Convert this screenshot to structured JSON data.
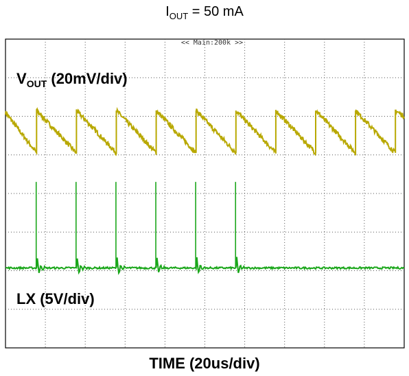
{
  "title": {
    "main": "I",
    "sub": "OUT",
    "rest": " = 50 mA"
  },
  "xlabel": "TIME (20us/div)",
  "banner": "<< Main:200k >>",
  "labels": {
    "vout_main": "V",
    "vout_sub": "OUT",
    "vout_rest": " (20mV/div)",
    "lx": "LX (5V/div)"
  },
  "colors": {
    "vout": "#b8a800",
    "lx": "#1aa61a",
    "grid": "#555555",
    "border": "#000000"
  },
  "chart_data": {
    "type": "line",
    "title": "IOUT = 50 mA",
    "xlabel": "TIME (20us/div)",
    "x_divisions": 10,
    "y_divisions": 8,
    "grid": true,
    "series": [
      {
        "name": "VOUT (20mV/div)",
        "shape": "sawtooth",
        "x": [
          0,
          0.78,
          0.78,
          1.78,
          1.78,
          2.78,
          2.78,
          3.78,
          3.78,
          4.78,
          4.78,
          5.78,
          5.78,
          6.78,
          6.78,
          7.78,
          7.78,
          8.78,
          8.78,
          9.78,
          9.78,
          10
        ],
        "y": [
          6.1,
          5.05,
          6.15,
          5.05,
          6.15,
          5.05,
          6.15,
          5.05,
          6.15,
          5.05,
          6.15,
          5.05,
          6.15,
          5.05,
          6.15,
          5.05,
          6.15,
          5.05,
          6.15,
          5.05,
          6.15,
          6.0
        ]
      },
      {
        "name": "LX (5V/div)",
        "shape": "spike-train",
        "baseline": 2.07,
        "spike_times": [
          0.78,
          1.78,
          2.78,
          3.78,
          4.78,
          5.78
        ],
        "spike_peak": 4.3
      }
    ]
  }
}
